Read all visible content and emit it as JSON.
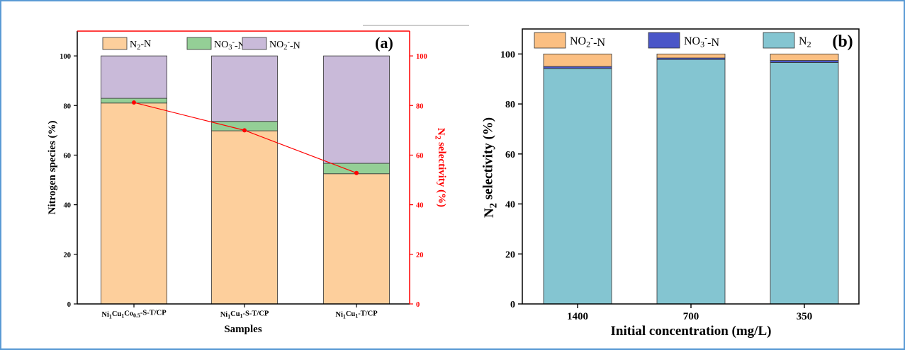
{
  "chart_data": [
    {
      "type": "bar",
      "panel_label": "(a)",
      "stacked": true,
      "categories": [
        "Ni1Cu1Co0.5-S-T/CP",
        "Ni1Cu1-S-T/CP",
        "Ni1Cu1-T/CP"
      ],
      "series": [
        {
          "name": "N2-N",
          "values": [
            81.0,
            69.8,
            52.5
          ],
          "color": "#fdcf9c"
        },
        {
          "name": "NO3--N",
          "values": [
            1.9,
            3.8,
            4.2
          ],
          "color": "#94cf96"
        },
        {
          "name": "NO2--N",
          "values": [
            17.1,
            26.4,
            43.3
          ],
          "color": "#c9bad9"
        }
      ],
      "secondary_series": {
        "name": "N2 selectivity",
        "values": [
          81.2,
          70.0,
          52.8
        ],
        "color": "#ff0000",
        "type": "line"
      },
      "xlabel": "Samples",
      "ylabel": "Nitrogen species (%)",
      "y2label": "N2 selectivity (%)",
      "ylim": [
        0,
        110
      ],
      "yticks": [
        0,
        20,
        40,
        60,
        80,
        100
      ],
      "y2ticks": [
        0,
        20,
        40,
        60,
        80,
        100
      ],
      "grid": false,
      "legend_position": "top"
    },
    {
      "type": "bar",
      "panel_label": "(b)",
      "stacked": true,
      "categories": [
        "1400",
        "700",
        "350"
      ],
      "series": [
        {
          "name": "N2",
          "values": [
            94.2,
            97.8,
            96.6
          ],
          "color": "#84c5d1"
        },
        {
          "name": "NO3--N",
          "values": [
            0.8,
            0.6,
            0.8
          ],
          "color": "#4a56c8"
        },
        {
          "name": "NO2--N",
          "values": [
            5.0,
            1.6,
            2.6
          ],
          "color": "#fbbf82"
        }
      ],
      "xlabel": "Initial concentration (mg/L)",
      "ylabel": "N2 selectivity (%)",
      "ylim": [
        0,
        110
      ],
      "yticks": [
        0,
        20,
        40,
        60,
        80,
        100
      ],
      "grid": false,
      "legend_position": "top"
    }
  ]
}
